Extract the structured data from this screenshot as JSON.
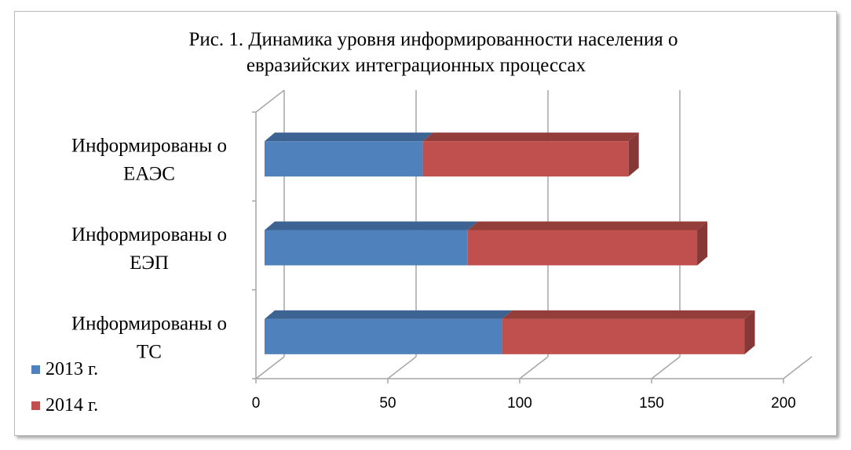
{
  "chart_data": {
    "type": "bar",
    "orientation": "horizontal",
    "stacked": true,
    "style": "3d",
    "title": "Рис. 1. Динамика уровня информированности населения  о евразийских интеграционных  процессах",
    "title_lines": [
      "Рис. 1. Динамика уровня информированности населения  о",
      "евразийских интеграционных  процессах"
    ],
    "categories": [
      "Информированы о ЕАЭС",
      "Информированы о ЕЭП",
      "Информированы о ТС"
    ],
    "category_lines": [
      [
        "Информированы о",
        "ЕАЭС"
      ],
      [
        "Информированы о",
        "ЕЭП"
      ],
      [
        "Информированы о",
        "ТС"
      ]
    ],
    "series": [
      {
        "name": "2013 г.",
        "color": "#4f81bd",
        "values": [
          60,
          77,
          90
        ]
      },
      {
        "name": "2014 г.",
        "color": "#c0504d",
        "values": [
          78,
          87,
          92
        ]
      }
    ],
    "xlim": [
      0,
      200
    ],
    "xticks": [
      "0",
      "50",
      "100",
      "150",
      "200"
    ],
    "grid": true,
    "legend": "bottom-left"
  }
}
